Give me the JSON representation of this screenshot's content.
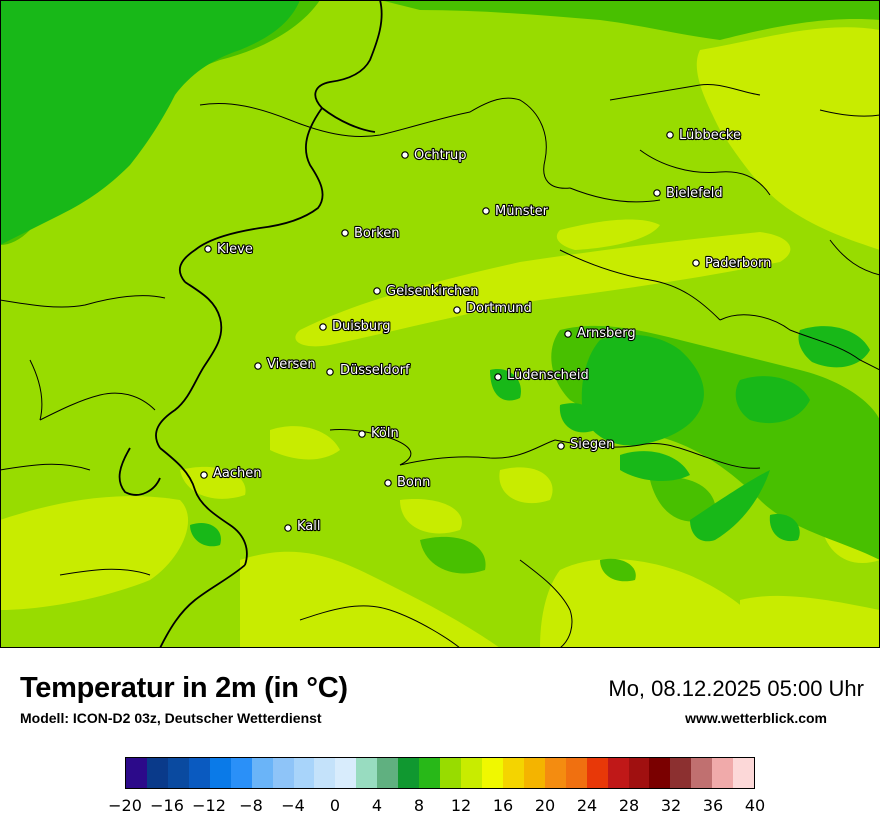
{
  "map": {
    "colors": {
      "base": "#98dc00",
      "warm": "#c8ec00",
      "cool": "#48c000",
      "cold": "#18b818",
      "border": "#000000"
    },
    "cities": [
      {
        "name": "Lübbecke"
      },
      {
        "name": "Ochtrup"
      },
      {
        "name": "Bielefeld"
      },
      {
        "name": "Münster"
      },
      {
        "name": "Borken"
      },
      {
        "name": "Kleve"
      },
      {
        "name": "Paderborn"
      },
      {
        "name": "Gelsenkirchen"
      },
      {
        "name": "Dortmund"
      },
      {
        "name": "Duisburg"
      },
      {
        "name": "Arnsberg"
      },
      {
        "name": "Viersen"
      },
      {
        "name": "Düsseldorf"
      },
      {
        "name": "Lüdenscheid"
      },
      {
        "name": "Köln"
      },
      {
        "name": "Siegen"
      },
      {
        "name": "Aachen"
      },
      {
        "name": "Bonn"
      },
      {
        "name": "Kall"
      }
    ]
  },
  "header": {
    "title": "Temperatur in 2m (in °C)",
    "model": "Modell: ICON-D2 03z, Deutscher Wetterdienst",
    "valid_time": "Mo, 08.12.2025 05:00 Uhr",
    "website": "www.wetterblick.com"
  },
  "legend": {
    "ticks": [
      "−20",
      "−16",
      "−12",
      "−8",
      "−4",
      "0",
      "4",
      "8",
      "12",
      "16",
      "20",
      "24",
      "28",
      "32",
      "36",
      "40"
    ],
    "colors": [
      "#2c0a8a",
      "#0a3a8a",
      "#0a4aa0",
      "#0a5ac0",
      "#0a7ae8",
      "#2a90f8",
      "#6ab4f8",
      "#8ec4f8",
      "#a8d4fa",
      "#c4e2fa",
      "#d8ecfc",
      "#98dcc0",
      "#60b080",
      "#109830",
      "#28b818",
      "#98dc00",
      "#c8ec00",
      "#f0f800",
      "#f4d400",
      "#f4b400",
      "#f48c10",
      "#f07010",
      "#e83808",
      "#c01818",
      "#a01010",
      "#7a0000",
      "#8c3030",
      "#c07070",
      "#f0aaaa",
      "#fcd8d8"
    ]
  }
}
